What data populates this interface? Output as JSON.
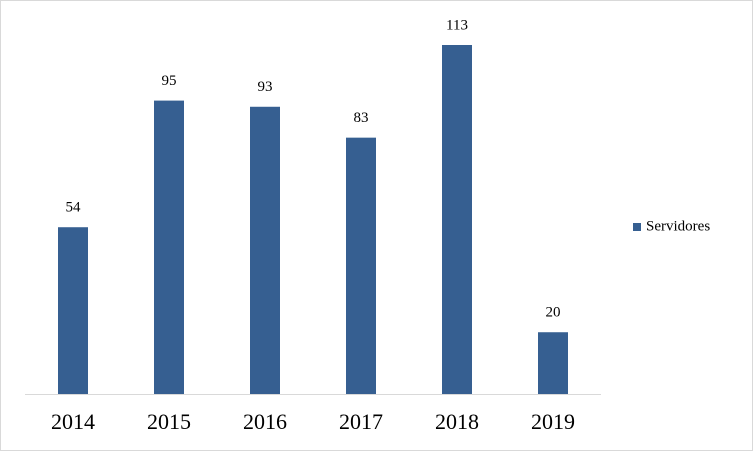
{
  "chart_data": {
    "type": "bar",
    "categories": [
      "2014",
      "2015",
      "2016",
      "2017",
      "2018",
      "2019"
    ],
    "series": [
      {
        "name": "Servidores",
        "color": "#365f91",
        "values": [
          54,
          95,
          93,
          83,
          113,
          20
        ]
      }
    ]
  }
}
